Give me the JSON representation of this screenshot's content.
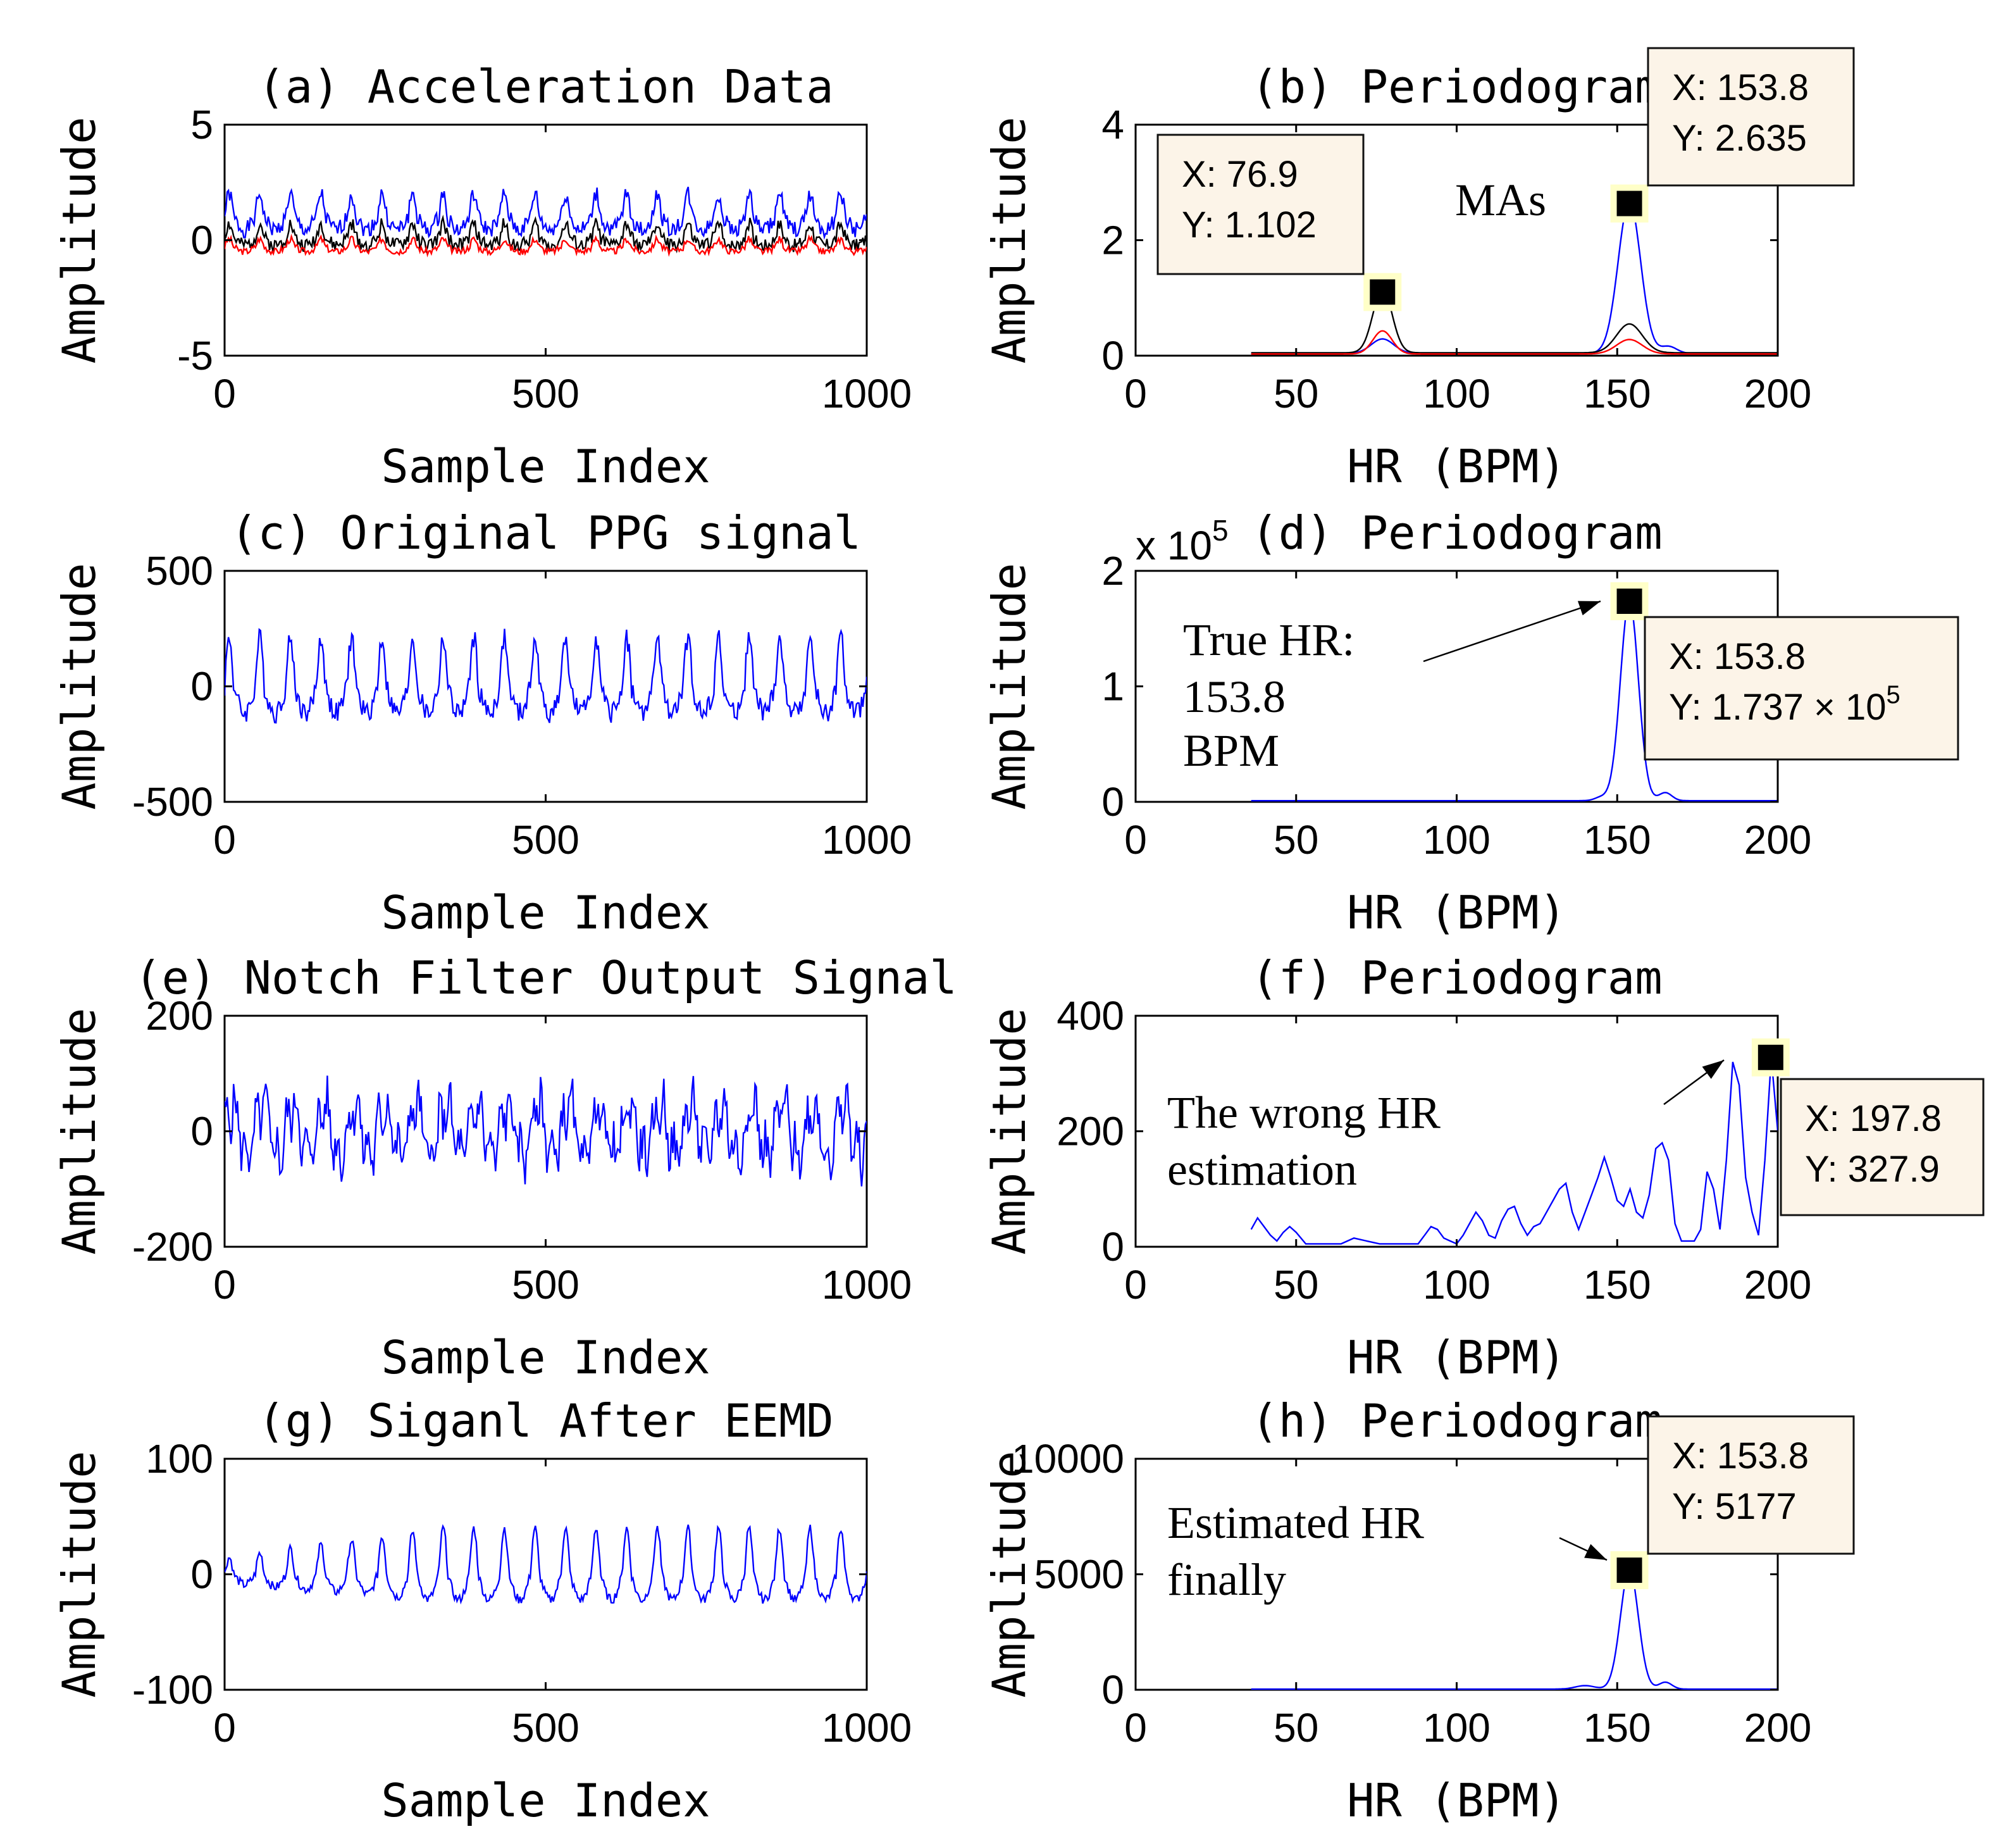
{
  "figure": {
    "colors": {
      "blue": "#0000ff",
      "black": "#000000",
      "red": "#ff0000",
      "tip_bg": "#fcf4e8",
      "marker_halo": "#ffffc8"
    },
    "panels": [
      {
        "id": "a",
        "side": "left",
        "row": 0,
        "title": "(a) Acceleration Data",
        "xlabel": "Sample Index",
        "ylabel": "Amplitude",
        "chart_data": {
          "type": "line",
          "xlim": [
            0,
            1000
          ],
          "ylim": [
            -5,
            5
          ],
          "xticks": [
            0,
            500,
            1000
          ],
          "yticks": [
            -5,
            0,
            5
          ],
          "series": [
            {
              "name": "acc-x",
              "color": "#0000ff",
              "generator": "periodic",
              "freq": 21,
              "base": 1.0,
              "amp": 1.0,
              "noise": 0.35,
              "seed": 1
            },
            {
              "name": "acc-y",
              "color": "#000000",
              "generator": "periodic",
              "freq": 21,
              "base": 0.1,
              "amp": 0.6,
              "noise": 0.3,
              "seed": 2
            },
            {
              "name": "acc-z",
              "color": "#ff0000",
              "generator": "periodic",
              "freq": 21,
              "base": -0.3,
              "amp": 0.35,
              "noise": 0.15,
              "seed": 3
            }
          ]
        }
      },
      {
        "id": "b",
        "side": "right",
        "row": 0,
        "title": "(b) Periodogram",
        "xlabel": "HR (BPM)",
        "ylabel": "Amplitude",
        "chart_data": {
          "type": "line",
          "xlim": [
            0,
            200
          ],
          "ylim": [
            0,
            4
          ],
          "xticks": [
            0,
            50,
            100,
            150,
            200
          ],
          "yticks": [
            0,
            2,
            4
          ],
          "series": [
            {
              "name": "blue",
              "color": "#0000ff",
              "generator": "spectrum",
              "floor": 0.04,
              "peaks": [
                [
                  76.9,
                  0.25,
                  3.5
                ],
                [
                  153.8,
                  2.635,
                  3.5
                ],
                [
                  166,
                  0.12,
                  2.5
                ]
              ]
            },
            {
              "name": "black",
              "color": "#000000",
              "generator": "spectrum",
              "floor": 0.05,
              "peaks": [
                [
                  76.9,
                  1.102,
                  3
                ],
                [
                  153.8,
                  0.5,
                  4
                ]
              ]
            },
            {
              "name": "red",
              "color": "#ff0000",
              "generator": "spectrum",
              "floor": 0.03,
              "peaks": [
                [
                  76.9,
                  0.4,
                  3
                ],
                [
                  153.8,
                  0.25,
                  4
                ]
              ]
            }
          ],
          "markers": [
            {
              "x": 76.9,
              "y": 1.102
            },
            {
              "x": 153.8,
              "y": 2.635
            }
          ],
          "datatips": [
            {
              "lines": [
                "X: 76.9",
                "Y: 1.102"
              ],
              "box": "b-tip-1"
            },
            {
              "lines": [
                "X: 153.8",
                "Y: 2.635"
              ],
              "box": "b-tip-2"
            }
          ],
          "annotations": [
            {
              "text": "MAs"
            }
          ]
        }
      },
      {
        "id": "c",
        "side": "left",
        "row": 1,
        "title": "(c) Original PPG signal",
        "xlabel": "Sample Index",
        "ylabel": "Amplitude",
        "chart_data": {
          "type": "line",
          "xlim": [
            0,
            1000
          ],
          "ylim": [
            -500,
            500
          ],
          "xticks": [
            0,
            500,
            1000
          ],
          "yticks": [
            -500,
            0,
            500
          ],
          "series": [
            {
              "name": "ppg",
              "color": "#0000ff",
              "generator": "periodic",
              "freq": 21,
              "base": 0,
              "amp": 210,
              "noise": 45,
              "seed": 4
            }
          ]
        }
      },
      {
        "id": "d",
        "side": "right",
        "row": 1,
        "title": "(d) Periodogram",
        "xlabel": "HR (BPM)",
        "ylabel": "Amplitude",
        "exponent_prefix": "x 10",
        "exponent": "5",
        "chart_data": {
          "type": "line",
          "xlim": [
            0,
            200
          ],
          "ylim": [
            0,
            2
          ],
          "xticks": [
            0,
            50,
            100,
            150,
            200
          ],
          "yticks": [
            0,
            1,
            2
          ],
          "y_scale_exponent": 5,
          "series": [
            {
              "name": "ppg-spectrum",
              "color": "#0000ff",
              "generator": "spectrum",
              "floor": 0.01,
              "peaks": [
                [
                  153.8,
                  1.737,
                  2.8
                ],
                [
                  165,
                  0.07,
                  2
                ],
                [
                  145,
                  0.03,
                  2
                ]
              ]
            }
          ],
          "markers": [
            {
              "x": 153.8,
              "y": 1.737
            }
          ],
          "datatips": [
            {
              "lines": [
                "X: 153.8",
                "Y: 1.737 × 10",
                "5"
              ],
              "box": "d-tip"
            }
          ],
          "annotations": [
            {
              "text": "True HR:"
            },
            {
              "text": "153.8"
            },
            {
              "text": "BPM"
            }
          ]
        }
      },
      {
        "id": "e",
        "side": "left",
        "row": 2,
        "title": "(e) Notch Filter Output Signal",
        "xlabel": "Sample Index",
        "ylabel": "Amplitude",
        "chart_data": {
          "type": "line",
          "xlim": [
            0,
            1000
          ],
          "ylim": [
            -200,
            200
          ],
          "xticks": [
            0,
            500,
            1000
          ],
          "yticks": [
            -200,
            0,
            200
          ],
          "series": [
            {
              "name": "notch-out",
              "color": "#0000ff",
              "generator": "mixed",
              "freq": 21,
              "base": 0,
              "amp": 60,
              "noise": 35,
              "seed": 5
            }
          ]
        }
      },
      {
        "id": "f",
        "side": "right",
        "row": 2,
        "title": "(f) Periodogram",
        "xlabel": "HR (BPM)",
        "ylabel": "Amplitude",
        "chart_data": {
          "type": "line",
          "xlim": [
            0,
            200
          ],
          "ylim": [
            0,
            400
          ],
          "xticks": [
            0,
            50,
            100,
            150,
            200
          ],
          "yticks": [
            0,
            200,
            400
          ],
          "series": [
            {
              "name": "notch-spectrum",
              "color": "#0000ff",
              "generator": "points",
              "x": [
                36,
                38,
                40,
                42,
                44,
                46,
                48,
                50,
                53,
                56,
                60,
                64,
                68,
                72,
                76,
                80,
                84,
                88,
                90,
                92,
                94,
                96,
                98,
                100,
                102,
                104,
                106,
                108,
                110,
                112,
                114,
                116,
                118,
                120,
                122,
                124,
                126,
                128,
                130,
                132,
                134,
                136,
                138,
                140,
                142,
                144,
                146,
                148,
                150,
                152,
                154,
                156,
                158,
                160,
                162,
                164,
                166,
                168,
                170,
                172,
                174,
                176,
                178,
                180,
                182,
                184,
                186,
                188,
                190,
                192,
                194,
                196,
                198,
                200
              ],
              "y": [
                30,
                50,
                35,
                20,
                10,
                25,
                35,
                25,
                5,
                5,
                5,
                5,
                15,
                10,
                5,
                5,
                5,
                5,
                20,
                35,
                30,
                15,
                10,
                5,
                20,
                40,
                60,
                45,
                20,
                15,
                45,
                65,
                70,
                40,
                20,
                35,
                40,
                60,
                80,
                100,
                110,
                60,
                30,
                60,
                90,
                120,
                155,
                120,
                80,
                70,
                100,
                60,
                50,
                90,
                170,
                180,
                150,
                40,
                10,
                10,
                10,
                30,
                130,
                100,
                30,
                150,
                320,
                280,
                120,
                60,
                20,
                150,
                327.9,
                200
              ]
            }
          ],
          "markers": [
            {
              "x": 197.8,
              "y": 327.9
            }
          ],
          "datatips": [
            {
              "lines": [
                "X: 197.8",
                "Y: 327.9"
              ],
              "box": "f-tip"
            }
          ],
          "annotations": [
            {
              "text": "The wrong HR"
            },
            {
              "text": "estimation"
            }
          ]
        }
      },
      {
        "id": "g",
        "side": "left",
        "row": 3,
        "title": "(g) Siganl After EEMD",
        "xlabel": "Sample Index",
        "ylabel": "Amplitude",
        "chart_data": {
          "type": "line",
          "xlim": [
            0,
            1000
          ],
          "ylim": [
            -100,
            100
          ],
          "xticks": [
            0,
            500,
            1000
          ],
          "yticks": [
            -100,
            0,
            100
          ],
          "series": [
            {
              "name": "eemd",
              "color": "#0000ff",
              "generator": "envelope",
              "freq": 21,
              "base": 0,
              "amp": 40,
              "noise": 4,
              "seed": 6
            }
          ]
        }
      },
      {
        "id": "h",
        "side": "right",
        "row": 3,
        "title": "(h) Periodogram",
        "xlabel": "HR (BPM)",
        "ylabel": "Amplitude",
        "chart_data": {
          "type": "line",
          "xlim": [
            0,
            200
          ],
          "ylim": [
            0,
            10000
          ],
          "xticks": [
            0,
            50,
            100,
            150,
            200
          ],
          "yticks": [
            0,
            5000,
            10000
          ],
          "series": [
            {
              "name": "eemd-spectrum",
              "color": "#0000ff",
              "generator": "spectrum",
              "floor": 30,
              "peaks": [
                [
                  153.8,
                  5177,
                  2.8
                ],
                [
                  165,
                  300,
                  2
                ],
                [
                  140,
                  150,
                  3
                ]
              ]
            }
          ],
          "markers": [
            {
              "x": 153.8,
              "y": 5177
            }
          ],
          "datatips": [
            {
              "lines": [
                "X: 153.8",
                "Y: 5177"
              ],
              "box": "h-tip"
            }
          ],
          "annotations": [
            {
              "text": "Estimated HR"
            },
            {
              "text": "finally"
            }
          ]
        }
      }
    ]
  }
}
